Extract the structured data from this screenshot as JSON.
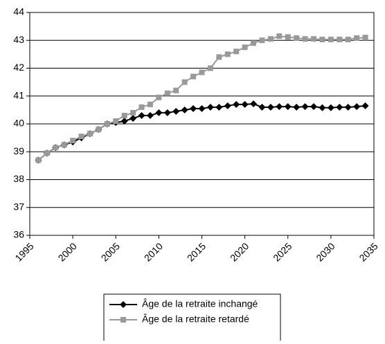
{
  "chart_data": {
    "type": "line",
    "x": [
      1996,
      1997,
      1998,
      1999,
      2000,
      2001,
      2002,
      2003,
      2004,
      2005,
      2006,
      2007,
      2008,
      2009,
      2010,
      2011,
      2012,
      2013,
      2014,
      2015,
      2016,
      2017,
      2018,
      2019,
      2020,
      2021,
      2022,
      2023,
      2024,
      2025,
      2026,
      2027,
      2028,
      2029,
      2030,
      2031,
      2032,
      2033,
      2034
    ],
    "series": [
      {
        "name": "Âge de la retraite inchangé",
        "color": "#000000",
        "marker": "diamond",
        "values": [
          38.7,
          38.95,
          39.15,
          39.25,
          39.35,
          39.5,
          39.65,
          39.8,
          40.0,
          40.05,
          40.1,
          40.2,
          40.3,
          40.3,
          40.4,
          40.4,
          40.45,
          40.5,
          40.55,
          40.55,
          40.6,
          40.6,
          40.65,
          40.7,
          40.7,
          40.72,
          40.6,
          40.6,
          40.62,
          40.62,
          40.6,
          40.62,
          40.62,
          40.58,
          40.58,
          40.6,
          40.6,
          40.62,
          40.65
        ]
      },
      {
        "name": "Âge de la retraite retardé",
        "color": "#999999",
        "marker": "square",
        "values": [
          38.7,
          38.95,
          39.15,
          39.25,
          39.4,
          39.55,
          39.65,
          39.8,
          40.0,
          40.1,
          40.3,
          40.4,
          40.6,
          40.7,
          40.95,
          41.1,
          41.2,
          41.5,
          41.7,
          41.85,
          42.0,
          42.4,
          42.5,
          42.6,
          42.75,
          42.9,
          43.0,
          43.05,
          43.15,
          43.12,
          43.08,
          43.05,
          43.05,
          43.03,
          43.03,
          43.03,
          43.03,
          43.08,
          43.1
        ]
      }
    ],
    "xlim": [
      1995,
      2035
    ],
    "xticks": [
      1995,
      2000,
      2005,
      2010,
      2015,
      2020,
      2025,
      2030,
      2035
    ],
    "ylim": [
      36,
      44
    ],
    "yticks": [
      36,
      37,
      38,
      39,
      40,
      41,
      42,
      43,
      44
    ],
    "grid": true,
    "legend": "bottom"
  }
}
